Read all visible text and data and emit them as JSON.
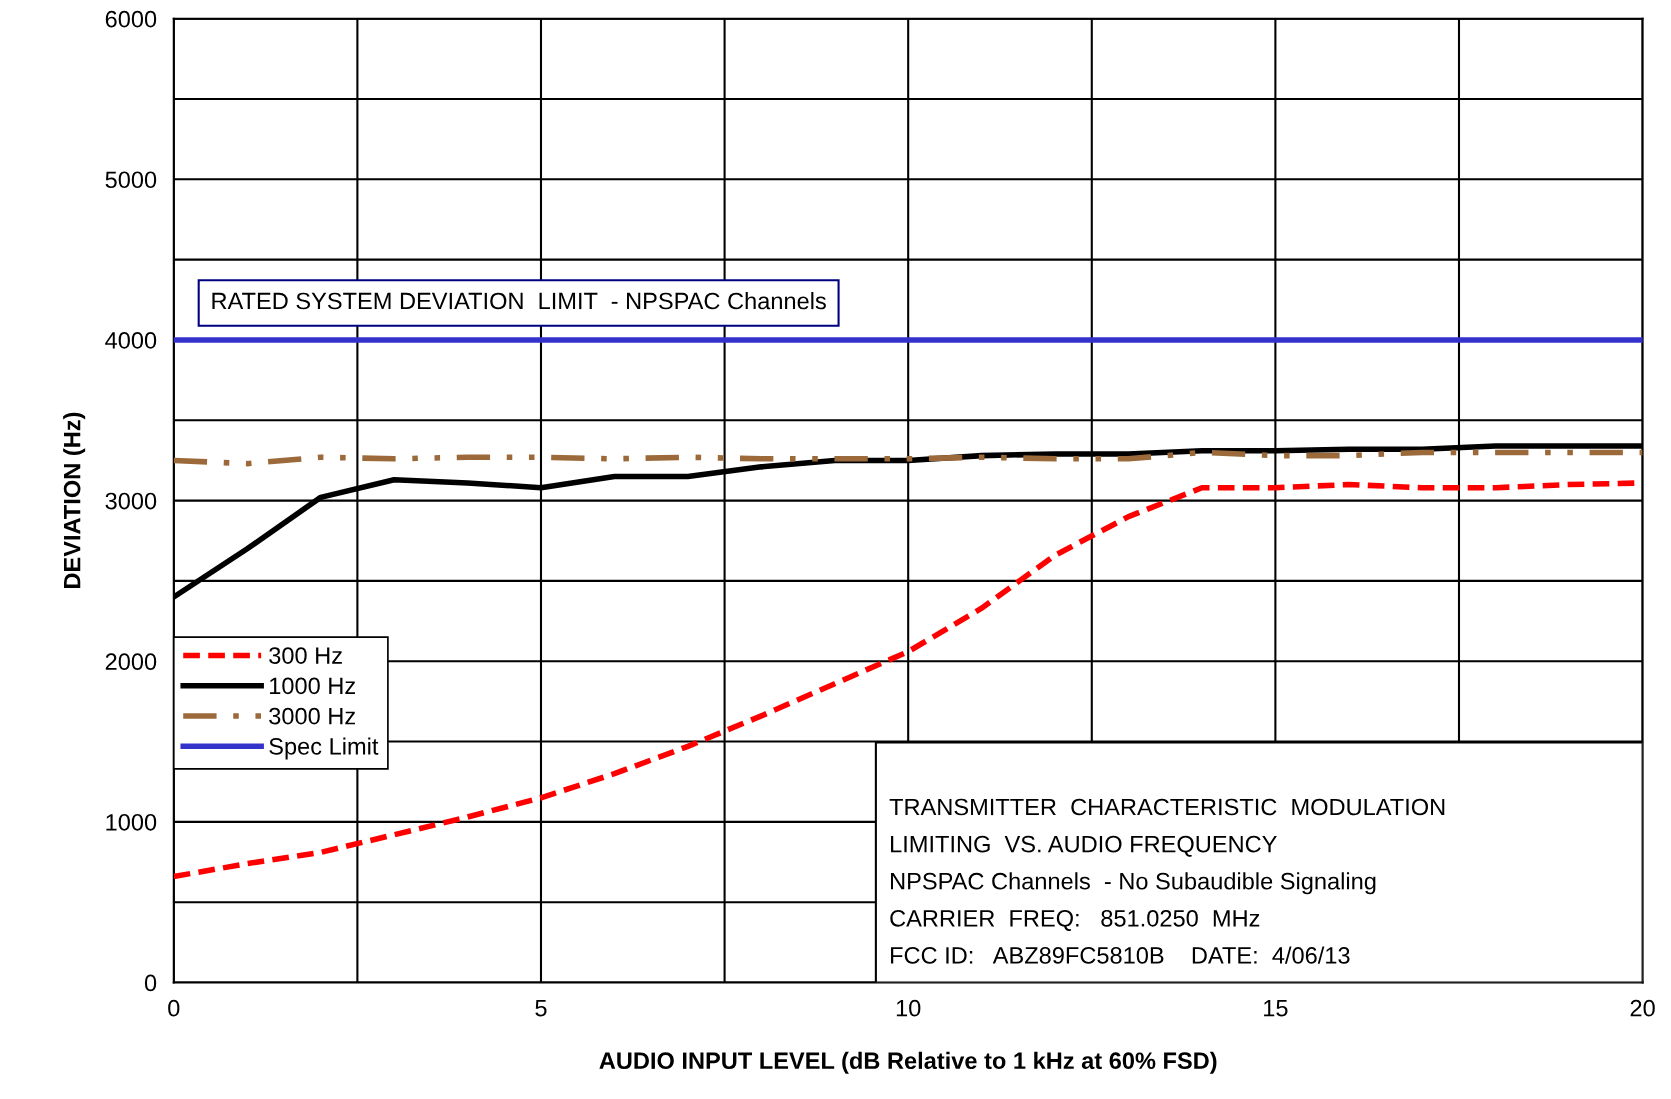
{
  "chart_data": {
    "type": "line",
    "xlabel": "AUDIO INPUT LEVEL (dB Relative to 1 kHz at 60% FSD)",
    "ylabel": "DEVIATION (Hz)",
    "x": [
      0,
      1,
      2,
      3,
      4,
      5,
      6,
      7,
      8,
      9,
      10,
      11,
      12,
      13,
      14,
      15,
      16,
      17,
      18,
      19,
      20
    ],
    "series": [
      {
        "name": "300 Hz",
        "color": "#ff0000",
        "line_style": "dashed",
        "values": [
          660,
          740,
          810,
          920,
          1030,
          1150,
          1300,
          1470,
          1660,
          1860,
          2060,
          2330,
          2660,
          2900,
          3080,
          3080,
          3100,
          3080,
          3080,
          3100,
          3110
        ]
      },
      {
        "name": "1000 Hz",
        "color": "#000000",
        "line_style": "solid",
        "values": [
          2400,
          2700,
          3020,
          3130,
          3110,
          3080,
          3150,
          3150,
          3210,
          3250,
          3250,
          3280,
          3290,
          3290,
          3310,
          3310,
          3320,
          3320,
          3340,
          3340,
          3340
        ]
      },
      {
        "name": "3000 Hz",
        "color": "#9c6a3a",
        "line_style": "dashdot",
        "values": [
          3250,
          3230,
          3270,
          3260,
          3270,
          3270,
          3260,
          3270,
          3260,
          3260,
          3260,
          3270,
          3260,
          3260,
          3300,
          3280,
          3280,
          3300,
          3300,
          3300,
          3300
        ]
      },
      {
        "name": "Spec Limit",
        "color": "#3333cc",
        "line_style": "solid",
        "x": [
          0,
          20
        ],
        "values": [
          4000,
          4000
        ]
      }
    ],
    "xlim": [
      0,
      20
    ],
    "xticks": [
      0,
      {
        "value": 2.5,
        "label": null
      },
      5,
      {
        "value": 7.5,
        "label": null
      },
      10,
      {
        "value": 12.5,
        "label": null
      },
      15,
      {
        "value": 17.5,
        "label": null
      },
      20
    ],
    "ylim": [
      0,
      6000
    ],
    "yticks": [
      0,
      {
        "value": 500,
        "label": null
      },
      1000,
      {
        "value": 1500,
        "label": null
      },
      2000,
      {
        "value": 2500,
        "label": null
      },
      3000,
      {
        "value": 3500,
        "label": null
      },
      4000,
      {
        "value": 4500,
        "label": null
      },
      5000,
      {
        "value": 5500,
        "label": null
      },
      6000
    ],
    "grid": true,
    "legend": "left",
    "annotations": [
      {
        "text": "RATED SYSTEM DEVIATION  LIMIT  - NPSPAC Channels",
        "x": 0.5,
        "y": 4000
      },
      "TRANSMITTER  CHARACTERISTIC  MODULATION",
      "LIMITING  VS. AUDIO FREQUENCY",
      "NPSPAC Channels  - No Subaudible Signaling",
      "CARRIER  FREQ:   851.0250  MHz",
      "FCC ID:   ABZ89FC5810B    DATE:  4/06/13"
    ]
  }
}
